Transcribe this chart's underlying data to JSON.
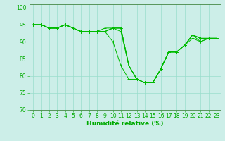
{
  "title": "",
  "xlabel": "Humidité relative (%)",
  "ylabel": "",
  "xlim": [
    -0.5,
    23.5
  ],
  "ylim": [
    70,
    101
  ],
  "yticks": [
    70,
    75,
    80,
    85,
    90,
    95,
    100
  ],
  "xticks": [
    0,
    1,
    2,
    3,
    4,
    5,
    6,
    7,
    8,
    9,
    10,
    11,
    12,
    13,
    14,
    15,
    16,
    17,
    18,
    19,
    20,
    21,
    22,
    23
  ],
  "background_color": "#cceee8",
  "grid_color": "#99ddcc",
  "line_color": "#00bb00",
  "curves": [
    [
      95,
      95,
      94,
      94,
      95,
      94,
      93,
      93,
      93,
      93,
      90,
      83,
      79,
      79,
      78,
      78,
      82,
      87,
      87,
      89,
      92,
      91,
      91,
      91
    ],
    [
      95,
      95,
      94,
      94,
      95,
      94,
      93,
      93,
      93,
      94,
      94,
      93,
      83,
      79,
      78,
      78,
      82,
      87,
      87,
      89,
      92,
      91,
      91,
      91
    ],
    [
      95,
      95,
      94,
      94,
      95,
      94,
      93,
      93,
      93,
      93,
      94,
      94,
      83,
      79,
      78,
      78,
      82,
      87,
      87,
      89,
      92,
      91,
      91,
      91
    ],
    [
      95,
      95,
      94,
      94,
      95,
      94,
      93,
      93,
      93,
      93,
      94,
      94,
      83,
      79,
      78,
      78,
      82,
      87,
      87,
      89,
      92,
      90,
      91,
      91
    ],
    [
      95,
      95,
      94,
      94,
      95,
      94,
      93,
      93,
      93,
      93,
      94,
      94,
      83,
      79,
      78,
      78,
      82,
      87,
      87,
      89,
      91,
      90,
      91,
      91
    ]
  ],
  "figsize": [
    3.2,
    2.0
  ],
  "dpi": 100,
  "font_color": "#00aa00",
  "tick_fontsize": 5.5,
  "xlabel_fontsize": 6.5
}
